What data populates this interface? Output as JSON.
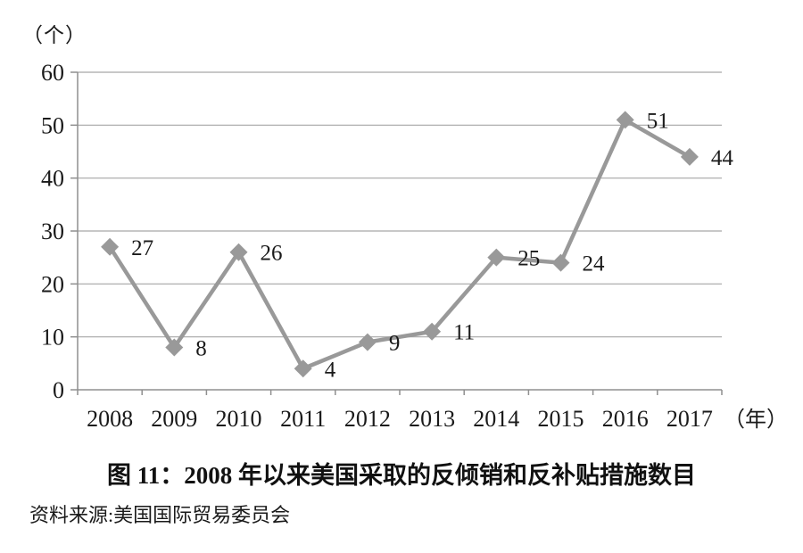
{
  "chart_data": {
    "type": "line",
    "categories": [
      "2008",
      "2009",
      "2010",
      "2011",
      "2012",
      "2013",
      "2014",
      "2015",
      "2016",
      "2017"
    ],
    "values": [
      27,
      8,
      26,
      4,
      9,
      11,
      25,
      24,
      51,
      44
    ],
    "title": "图 11：2008 年以来美国采取的反倾销和反补贴措施数目",
    "source": "资料来源:美国国际贸易委员会",
    "y_unit_label": "（个）",
    "x_unit_label": "（年）",
    "ylabel": "",
    "xlabel": "",
    "ylim": [
      0,
      60
    ],
    "y_ticks": [
      0,
      10,
      20,
      30,
      40,
      50,
      60
    ],
    "grid": true,
    "legend": "none",
    "marker": "diamond",
    "colors": {
      "line": "#999999",
      "marker": "#999999",
      "gridline": "#a6a6a6",
      "axis": "#8f8f8f",
      "text": "#1a1a1a"
    }
  }
}
